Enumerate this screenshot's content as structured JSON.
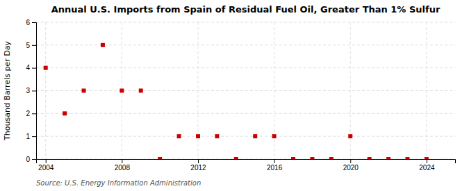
{
  "chart_data": {
    "type": "scatter",
    "title": "Annual U.S. Imports from Spain of Residual Fuel Oil, Greater Than 1% Sulfur",
    "ylabel": "Thousand Barrels per Day",
    "source": "Source: U.S. Energy Information Administration",
    "x": [
      2004,
      2005,
      2006,
      2007,
      2008,
      2009,
      2010,
      2011,
      2012,
      2013,
      2014,
      2015,
      2016,
      2017,
      2018,
      2019,
      2020,
      2021,
      2022,
      2023,
      2024
    ],
    "values": [
      4,
      2,
      3,
      5,
      3,
      3,
      0,
      1,
      1,
      1,
      0,
      1,
      1,
      0,
      0,
      0,
      1,
      0,
      0,
      0,
      0
    ],
    "color": "#cc0000",
    "marker": "square",
    "xlim": [
      2003.5,
      2025.5
    ],
    "xticks": [
      2004,
      2008,
      2012,
      2016,
      2020,
      2024
    ],
    "ylim": [
      0,
      6
    ],
    "yticks": [
      0,
      1,
      2,
      3,
      4,
      5,
      6
    ],
    "grid": true
  }
}
